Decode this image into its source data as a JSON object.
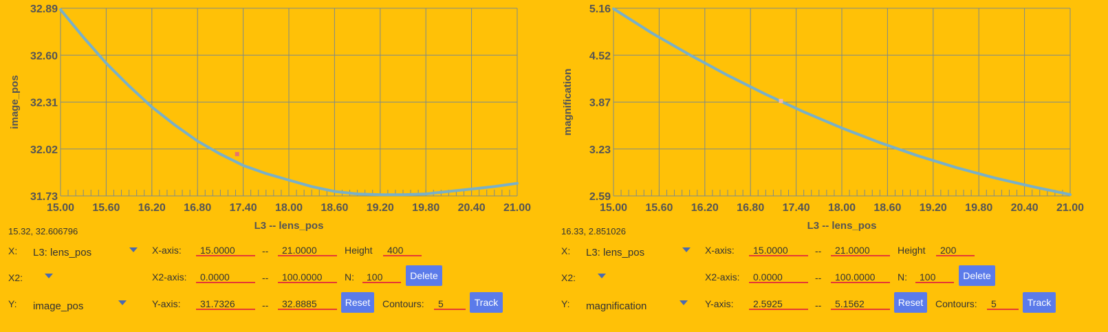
{
  "chart_data": [
    {
      "type": "line",
      "xlabel": "L3 -- lens_pos",
      "ylabel": "image_pos",
      "xlim": [
        15.0,
        21.0
      ],
      "ylim": [
        31.7326,
        32.8885
      ],
      "x_ticks": [
        "15.00",
        "15.60",
        "16.20",
        "16.80",
        "17.40",
        "18.00",
        "18.60",
        "19.20",
        "19.80",
        "20.40",
        "21.00"
      ],
      "y_ticks": [
        "31.73",
        "32.02",
        "32.31",
        "32.60",
        "32.89"
      ],
      "grid": true,
      "line_color": "#79b0c8",
      "marker_color": "#e57373",
      "marker": {
        "x": 17.32,
        "y": 31.99
      },
      "series": [
        {
          "x": [
            15.0,
            15.3,
            15.6,
            15.9,
            16.2,
            16.5,
            16.8,
            17.1,
            17.4,
            17.7,
            18.0,
            18.3,
            18.6,
            18.9,
            19.2,
            19.5,
            19.8,
            20.1,
            20.4,
            20.7,
            21.0
          ],
          "values": [
            32.88,
            32.71,
            32.55,
            32.41,
            32.28,
            32.17,
            32.07,
            31.99,
            31.92,
            31.87,
            31.83,
            31.79,
            31.76,
            31.745,
            31.74,
            31.74,
            31.745,
            31.76,
            31.775,
            31.79,
            31.81
          ]
        }
      ]
    },
    {
      "type": "line",
      "xlabel": "L3 -- lens_pos",
      "ylabel": "magnification",
      "xlim": [
        15.0,
        21.0
      ],
      "ylim": [
        2.5925,
        5.1562
      ],
      "x_ticks": [
        "15.00",
        "15.60",
        "16.20",
        "16.80",
        "17.40",
        "18.00",
        "18.60",
        "19.20",
        "19.80",
        "20.40",
        "21.00"
      ],
      "y_ticks": [
        "2.59",
        "3.23",
        "3.87",
        "4.52",
        "5.16"
      ],
      "grid": true,
      "line_color": "#79b0c8",
      "marker_color": "#f2b8a8",
      "marker": {
        "x": 17.2,
        "y": 3.89
      },
      "series": [
        {
          "x": [
            15.0,
            15.5,
            16.0,
            16.5,
            17.0,
            17.5,
            18.0,
            18.5,
            19.0,
            19.5,
            20.0,
            20.5,
            21.0
          ],
          "values": [
            5.15,
            4.82,
            4.52,
            4.24,
            3.98,
            3.74,
            3.52,
            3.32,
            3.14,
            2.98,
            2.84,
            2.72,
            2.61
          ]
        }
      ]
    }
  ],
  "panels": [
    {
      "readout": "15.32, 32.606796",
      "x_label": "X:",
      "x_value": "L3: lens_pos",
      "x2_label": "X2:",
      "x2_value": "",
      "y_label": "Y:",
      "y_value": "image_pos",
      "xaxis_label": "X-axis:",
      "xaxis_min": "15.0000",
      "xaxis_max": "21.0000",
      "x2axis_label": "X2-axis:",
      "x2axis_min": "0.0000",
      "x2axis_max": "100.0000",
      "yaxis_label": "Y-axis:",
      "yaxis_min": "31.7326",
      "yaxis_max": "32.8885",
      "dash": "--",
      "height_label": "Height",
      "height_value": "400",
      "n_label": "N:",
      "n_value": "100",
      "contours_label": "Contours:",
      "contours_value": "5",
      "delete_label": "Delete",
      "reset_label": "Reset",
      "track_label": "Track"
    },
    {
      "readout": "16.33, 2.851026",
      "x_label": "X:",
      "x_value": "L3: lens_pos",
      "x2_label": "X2:",
      "x2_value": "",
      "y_label": "Y:",
      "y_value": "magnification",
      "xaxis_label": "X-axis:",
      "xaxis_min": "15.0000",
      "xaxis_max": "21.0000",
      "x2axis_label": "X2-axis:",
      "x2axis_min": "0.0000",
      "x2axis_max": "100.0000",
      "yaxis_label": "Y-axis:",
      "yaxis_min": "2.5925",
      "yaxis_max": "5.1562",
      "dash": "--",
      "height_label": "Height",
      "height_value": "200",
      "n_label": "N:",
      "n_value": "100",
      "contours_label": "Contours:",
      "contours_value": "5",
      "delete_label": "Delete",
      "reset_label": "Reset",
      "track_label": "Track"
    }
  ]
}
